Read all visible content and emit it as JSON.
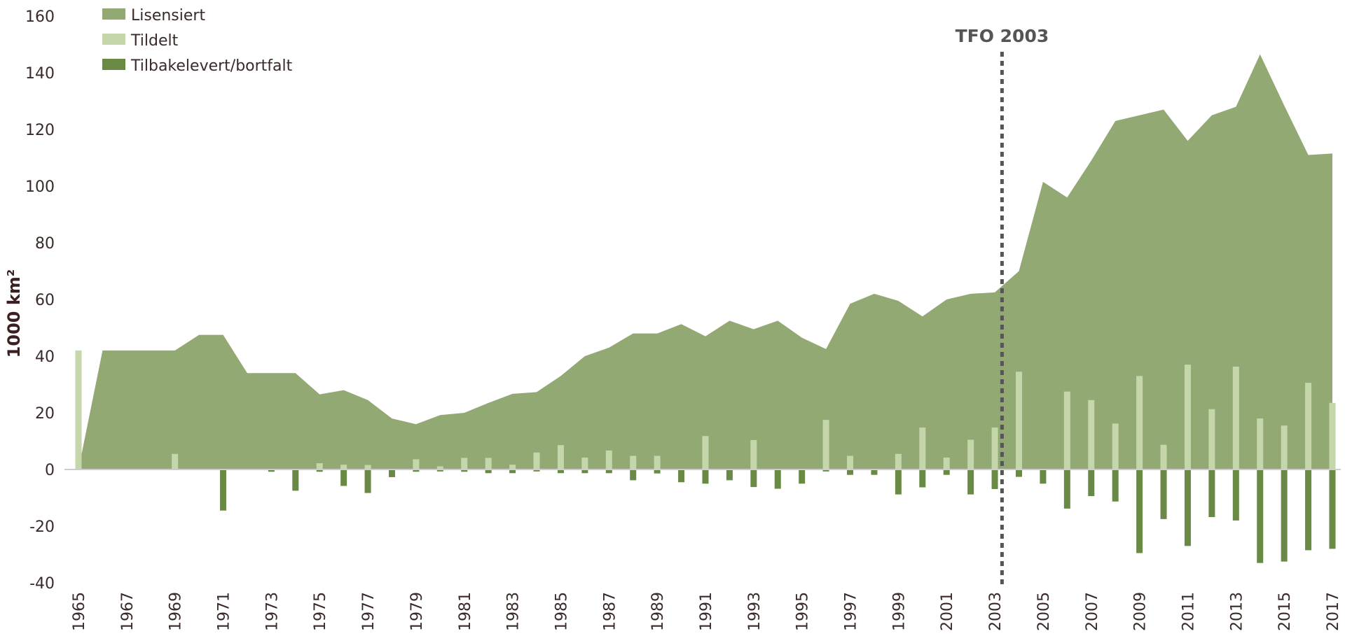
{
  "chart_data": {
    "type": "area",
    "ylabel": "1000 km²",
    "ylim": [
      -40,
      160
    ],
    "y_ticks": [
      160,
      140,
      120,
      100,
      80,
      60,
      40,
      20,
      0,
      -20,
      -40
    ],
    "x_range": [
      1965,
      2017
    ],
    "x_tick_labels": [
      "1965",
      "1967",
      "1969",
      "1971",
      "1973",
      "1975",
      "1977",
      "1979",
      "1981",
      "1983",
      "1985",
      "1987",
      "1989",
      "1991",
      "1993",
      "1995",
      "1997",
      "1999",
      "2001",
      "2003",
      "2005",
      "2007",
      "2009",
      "2011",
      "2013",
      "2015",
      "2017"
    ],
    "legend_position": "top-left",
    "grid": false,
    "colors": {
      "lisensiert": "#93a974",
      "tildelt": "#c6d6ab",
      "tilbakelevert": "#688a45",
      "annotation": "#555555",
      "zero_line": "#cccccc"
    },
    "series": [
      {
        "name": "Lisensiert",
        "kind": "area",
        "x": [
          1965,
          1966,
          1967,
          1968,
          1969,
          1970,
          1971,
          1972,
          1973,
          1974,
          1975,
          1976,
          1977,
          1978,
          1979,
          1980,
          1981,
          1982,
          1983,
          1984,
          1985,
          1986,
          1987,
          1988,
          1989,
          1990,
          1991,
          1992,
          1993,
          1994,
          1995,
          1996,
          1997,
          1998,
          1999,
          2000,
          2001,
          2002,
          2003,
          2004,
          2005,
          2006,
          2007,
          2008,
          2009,
          2010,
          2011,
          2012,
          2013,
          2014,
          2015,
          2016,
          2017
        ],
        "values": [
          0,
          42,
          42,
          42,
          42,
          47.5,
          47.5,
          34,
          34,
          34,
          26.5,
          28,
          24.5,
          18,
          16,
          19.2,
          20,
          23.5,
          26.7,
          27.3,
          33,
          40,
          43,
          48,
          48,
          51.3,
          47,
          52.5,
          49.5,
          52.5,
          46.5,
          42.5,
          58.5,
          62,
          59.5,
          54,
          60,
          62,
          62.5,
          70,
          101.5,
          96,
          109,
          123,
          125,
          127,
          116,
          125,
          128,
          146.5,
          128.5,
          111,
          111.5
        ]
      },
      {
        "name": "Tildelt",
        "kind": "bar",
        "x": [
          1965,
          1969,
          1975,
          1976,
          1977,
          1979,
          1980,
          1981,
          1982,
          1983,
          1984,
          1985,
          1986,
          1987,
          1988,
          1989,
          1991,
          1993,
          1996,
          1997,
          1999,
          2000,
          2001,
          2002,
          2003,
          2004,
          2006,
          2007,
          2008,
          2009,
          2010,
          2011,
          2012,
          2013,
          2014,
          2015,
          2016,
          2017
        ],
        "values": [
          42,
          5.5,
          2.2,
          1.7,
          1.6,
          3.6,
          1.1,
          4.1,
          4.1,
          1.7,
          6,
          8.6,
          4.2,
          6.7,
          4.8,
          4.8,
          11.8,
          10.4,
          17.5,
          4.8,
          5.5,
          14.8,
          4.2,
          10.5,
          14.8,
          34.5,
          27.5,
          24.5,
          16.2,
          33,
          8.7,
          37,
          21.3,
          36.3,
          18,
          15.5,
          30.6,
          23.5
        ]
      },
      {
        "name": "Tilbakelevert/bortfalt",
        "kind": "bar",
        "x": [
          1971,
          1973,
          1974,
          1975,
          1976,
          1977,
          1978,
          1979,
          1980,
          1981,
          1982,
          1983,
          1984,
          1985,
          1986,
          1987,
          1988,
          1989,
          1990,
          1991,
          1992,
          1993,
          1994,
          1995,
          1996,
          1997,
          1998,
          1999,
          2000,
          2001,
          2002,
          2003,
          2004,
          2005,
          2006,
          2007,
          2008,
          2009,
          2010,
          2011,
          2012,
          2013,
          2014,
          2015,
          2016,
          2017
        ],
        "values": [
          -14.5,
          -0.8,
          -7.5,
          -0.8,
          -5.8,
          -8.3,
          -2.7,
          -0.8,
          -0.7,
          -0.8,
          -1.3,
          -1.3,
          -0.7,
          -1.3,
          -1.3,
          -1.3,
          -3.8,
          -1.4,
          -4.5,
          -5,
          -3.8,
          -6.2,
          -6.8,
          -5,
          -0.7,
          -1.9,
          -1.9,
          -8.8,
          -6.3,
          -1.9,
          -8.8,
          -6.9,
          -2.6,
          -5,
          -13.8,
          -9.4,
          -11.3,
          -29.5,
          -17.5,
          -27,
          -16.8,
          -18,
          -33,
          -32.5,
          -28.5,
          -28
        ]
      }
    ],
    "annotations": [
      {
        "label": "TFO 2003",
        "x": 2003.3
      }
    ]
  }
}
